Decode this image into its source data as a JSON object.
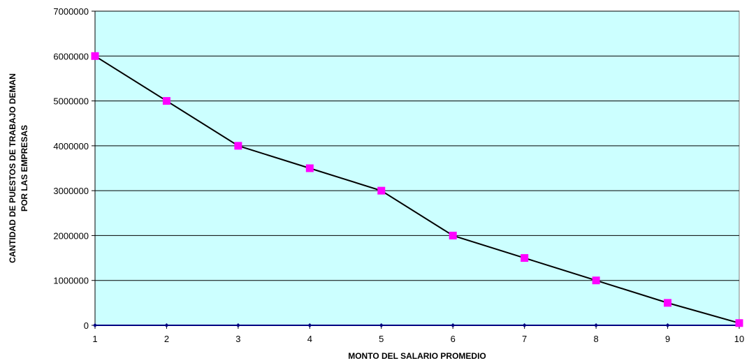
{
  "chart_data": {
    "type": "line",
    "title": "",
    "xlabel": "MONTO DEL SALARIO PROMEDIO",
    "ylabel_lines": [
      "CANTIDAD DE PUESTOS DE TRABAJO DEMAN",
      "POR LAS EMPRESAS"
    ],
    "x": [
      1,
      2,
      3,
      4,
      5,
      6,
      7,
      8,
      9,
      10
    ],
    "xlim": [
      1,
      10
    ],
    "ylim": [
      0,
      7000000
    ],
    "yticks": [
      0,
      1000000,
      2000000,
      3000000,
      4000000,
      5000000,
      6000000,
      7000000
    ],
    "grid": true,
    "legend": "none",
    "series": [
      {
        "values": [
          6000000,
          5000000,
          4000000,
          3500000,
          3000000,
          2000000,
          1500000,
          1000000,
          500000,
          50000
        ],
        "line_color": "#000000",
        "marker": "square",
        "marker_color": "#ff00ff"
      },
      {
        "values": [
          0,
          0,
          0,
          0,
          0,
          0,
          0,
          0,
          0,
          0
        ],
        "line_color": "#000080",
        "marker": "diamond",
        "marker_color": "#000080"
      }
    ],
    "plot_background": "#ccffff",
    "gridline_color": "#000000"
  }
}
